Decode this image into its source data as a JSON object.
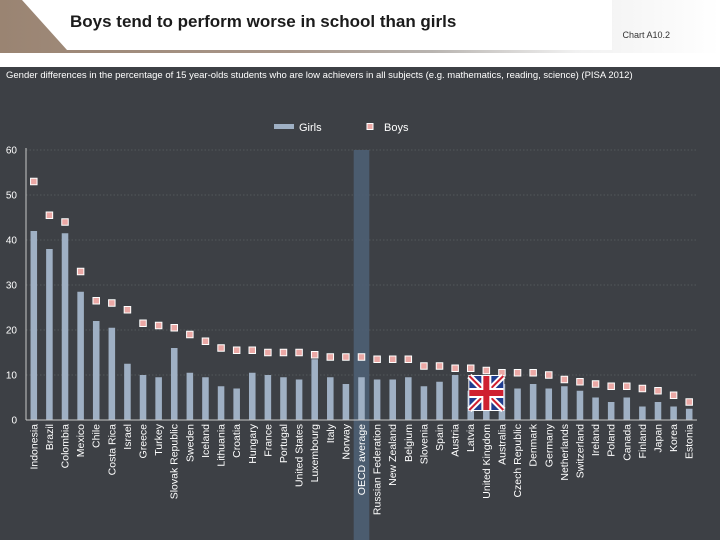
{
  "header": {
    "title": "Boys tend to perform worse in school than girls",
    "chart_ref": "Chart A10.2"
  },
  "subtitle": "Gender differences in the percentage of 15 year-olds students who are low achievers in all subjects (e.g. mathematics, reading, science) (PISA 2012)",
  "colors": {
    "girls_bar": "#9fb0c4",
    "boys_marker_fill": "#eba8a5",
    "boys_marker_stroke": "#ffffff",
    "background": "#3d4045",
    "oecd_highlight": "#4d5f73"
  },
  "icons": {
    "uk_flag": "union-jack-flag"
  },
  "chart_data": {
    "type": "bar",
    "title": "",
    "xlabel": "",
    "ylabel": "",
    "ylim": [
      0,
      60
    ],
    "yticks": [
      0,
      10,
      20,
      30,
      40,
      50,
      60
    ],
    "legend": {
      "placement": "top-center"
    },
    "highlight_category": "OECD average",
    "categories": [
      "Indonesia",
      "Brazil",
      "Colombia",
      "Mexico",
      "Chile",
      "Costa Rica",
      "Israel",
      "Greece",
      "Turkey",
      "Slovak Republic",
      "Sweden",
      "Iceland",
      "Lithuania",
      "Croatia",
      "Hungary",
      "France",
      "Portugal",
      "United States",
      "Luxembourg",
      "Italy",
      "Norway",
      "OECD average",
      "Russian Federation",
      "New Zealand",
      "Belgium",
      "Slovenia",
      "Spain",
      "Austria",
      "Latvia",
      "United Kingdom",
      "Australia",
      "Czech Republic",
      "Denmark",
      "Germany",
      "Netherlands",
      "Switzerland",
      "Ireland",
      "Poland",
      "Canada",
      "Finland",
      "Japan",
      "Korea",
      "Estonia"
    ],
    "series": [
      {
        "name": "Girls",
        "kind": "bar",
        "values": [
          42,
          38,
          41.5,
          28.5,
          22,
          20.5,
          12.5,
          10,
          9.5,
          16,
          10.5,
          9.5,
          7.5,
          7,
          10.5,
          10,
          9.5,
          9,
          13.5,
          9.5,
          8,
          9.5,
          9,
          9,
          9.5,
          7.5,
          8.5,
          10,
          6.5,
          9.5,
          8,
          7,
          8,
          7,
          7.5,
          6.5,
          5,
          4,
          5,
          3,
          4,
          3,
          2.5
        ]
      },
      {
        "name": "Boys",
        "kind": "marker",
        "values": [
          53,
          45.5,
          44,
          33,
          26.5,
          26,
          24.5,
          21.5,
          21,
          20.5,
          19,
          17.5,
          16,
          15.5,
          15.5,
          15,
          15,
          15,
          14.5,
          14,
          14,
          14,
          13.5,
          13.5,
          13.5,
          12,
          12,
          11.5,
          11.5,
          11,
          10.5,
          10.5,
          10.5,
          10,
          9,
          8.5,
          8,
          7.5,
          7.5,
          7,
          6.5,
          5.5,
          4
        ]
      }
    ]
  }
}
